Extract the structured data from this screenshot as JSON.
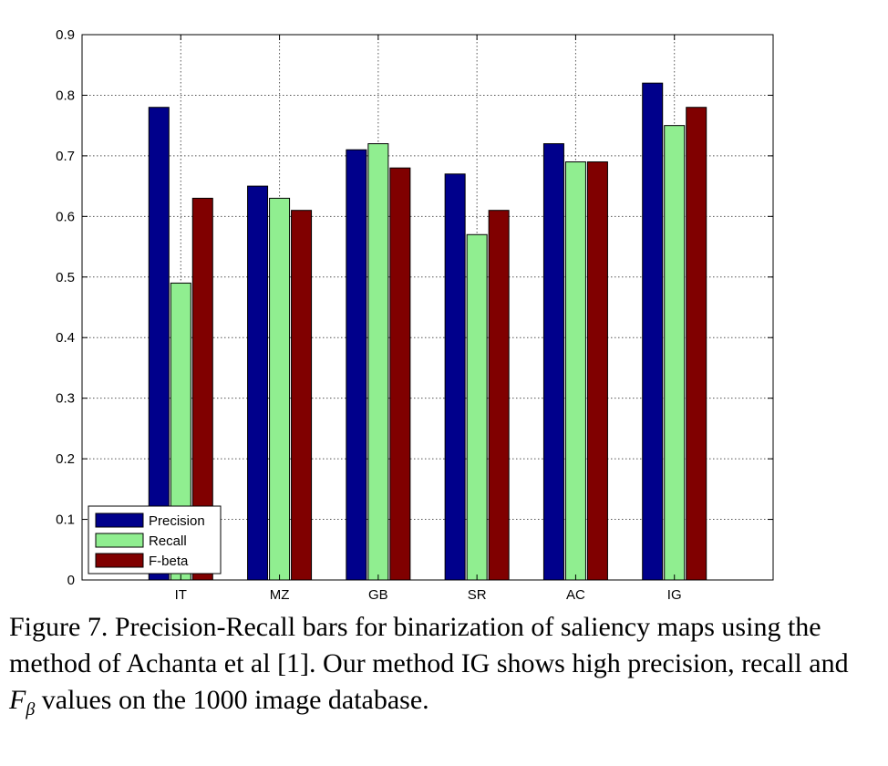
{
  "chart_data": {
    "type": "bar",
    "title": "",
    "xlabel": "",
    "ylabel": "",
    "categories": [
      "IT",
      "MZ",
      "GB",
      "SR",
      "AC",
      "IG"
    ],
    "ylim": [
      0,
      0.9
    ],
    "yticks": [
      "0",
      "0.1",
      "0.2",
      "0.3",
      "0.4",
      "0.5",
      "0.6",
      "0.7",
      "0.8",
      "0.9"
    ],
    "grid": true,
    "legend_position": "bottom-left",
    "series": [
      {
        "name": "Precision",
        "color": "#00008b",
        "values": [
          0.78,
          0.65,
          0.71,
          0.67,
          0.72,
          0.82
        ]
      },
      {
        "name": "Recall",
        "color": "#90ee90",
        "values": [
          0.49,
          0.63,
          0.72,
          0.57,
          0.69,
          0.75
        ]
      },
      {
        "name": "F-beta",
        "color": "#800000",
        "values": [
          0.63,
          0.61,
          0.68,
          0.61,
          0.69,
          0.78
        ]
      }
    ]
  },
  "caption": {
    "part1": "Figure 7. Precision-Recall bars for binarization of saliency maps using the method of Achanta et al [1]. Our method IG shows high precision, recall and ",
    "symbol": "F",
    "subscript": "β",
    "part2": " values on the 1000 image database."
  }
}
